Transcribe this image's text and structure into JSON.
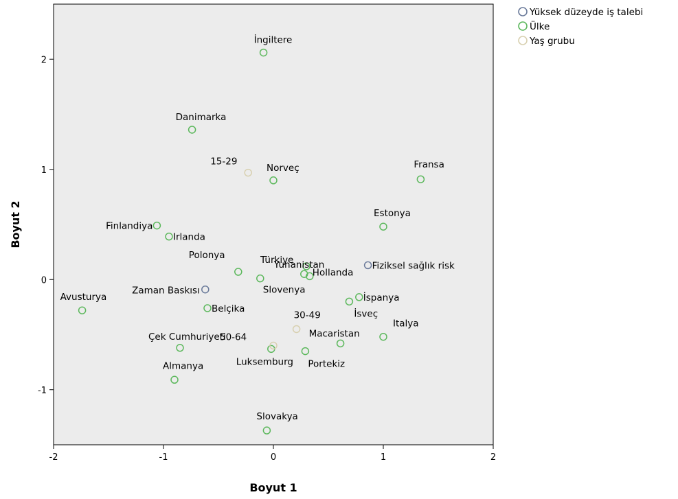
{
  "chart_data": {
    "type": "scatter",
    "xlabel": "Boyut 1",
    "ylabel": "Boyut 2",
    "xlim": [
      -2,
      2
    ],
    "ylim": [
      -1.5,
      2.5
    ],
    "xticks": [
      "-2",
      "-1",
      "0",
      "1",
      "2"
    ],
    "yticks": [
      "-1",
      "0",
      "1",
      "2"
    ],
    "grid": false,
    "legend_position": "top-right",
    "series": [
      {
        "name": "Yüksek düzeyde iş talebi",
        "color": "#6a7a9a",
        "points": [
          {
            "label": "Zaman Baskısı",
            "x": -0.62,
            "y": -0.09
          },
          {
            "label": "Fiziksel sağlık risk",
            "x": 0.86,
            "y": 0.13
          }
        ]
      },
      {
        "name": "Ülke",
        "color": "#5cb85c",
        "points": [
          {
            "label": "İngiltere",
            "x": -0.09,
            "y": 2.06
          },
          {
            "label": "Danimarka",
            "x": -0.74,
            "y": 1.36
          },
          {
            "label": "Norveç",
            "x": 0.0,
            "y": 0.9
          },
          {
            "label": "Fransa",
            "x": 1.34,
            "y": 0.91
          },
          {
            "label": "Estonya",
            "x": 1.0,
            "y": 0.48
          },
          {
            "label": "Finlandiya",
            "x": -1.06,
            "y": 0.49
          },
          {
            "label": "Irlanda",
            "x": -0.95,
            "y": 0.39
          },
          {
            "label": "Yunanistan",
            "x": 0.28,
            "y": 0.05
          },
          {
            "label": "Polonya",
            "x": -0.32,
            "y": 0.07
          },
          {
            "label": "Türkiye",
            "x": 0.3,
            "y": 0.12
          },
          {
            "label": "Hollanda",
            "x": 0.33,
            "y": 0.03
          },
          {
            "label": "Slovenya",
            "x": -0.12,
            "y": 0.01
          },
          {
            "label": "Avusturya",
            "x": -1.74,
            "y": -0.28
          },
          {
            "label": "Belçika",
            "x": -0.6,
            "y": -0.26
          },
          {
            "label": "İspanya",
            "x": 0.78,
            "y": -0.16
          },
          {
            "label": "İsveç",
            "x": 0.69,
            "y": -0.2
          },
          {
            "label": "Italya",
            "x": 1.0,
            "y": -0.52
          },
          {
            "label": "Macaristan",
            "x": 0.61,
            "y": -0.58
          },
          {
            "label": "Çek Cumhuriyeti",
            "x": -0.85,
            "y": -0.62
          },
          {
            "label": "Luksemburg",
            "x": -0.02,
            "y": -0.63
          },
          {
            "label": "Portekiz",
            "x": 0.29,
            "y": -0.65
          },
          {
            "label": "Almanya",
            "x": -0.9,
            "y": -0.91
          },
          {
            "label": "Slovakya",
            "x": -0.06,
            "y": -1.37
          }
        ]
      },
      {
        "name": "Yaş grubu",
        "color": "#d8d0b0",
        "points": [
          {
            "label": "15-29",
            "x": -0.23,
            "y": 0.97
          },
          {
            "label": "30-49",
            "x": 0.21,
            "y": -0.45
          },
          {
            "label": "50-64",
            "x": 0.0,
            "y": -0.6
          }
        ]
      }
    ]
  }
}
